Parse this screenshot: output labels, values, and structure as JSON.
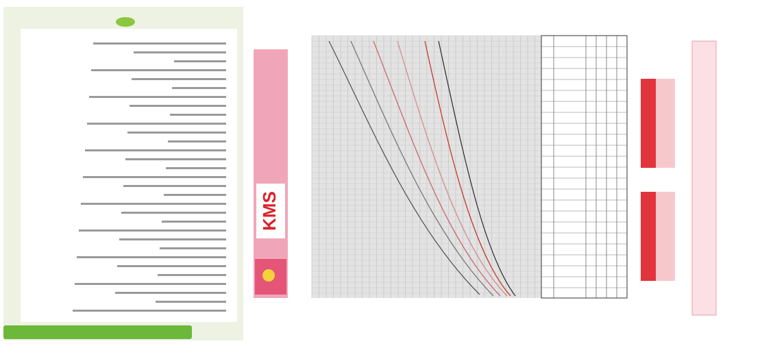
{
  "logo": "KMS"
}
